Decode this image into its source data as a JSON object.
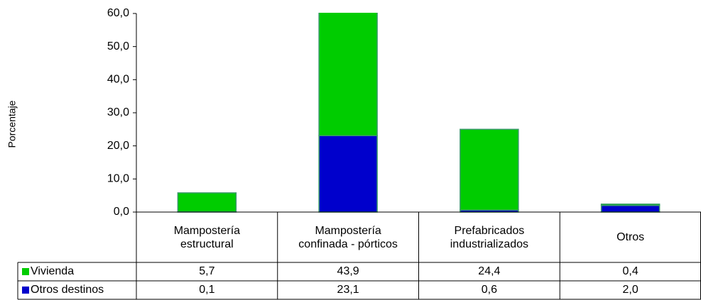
{
  "chart_data": {
    "type": "stacked_bar_table",
    "y_label": "Porcentaje",
    "categories": [
      "Mampostería estructural",
      "Mampostería confinada - pórticos",
      "Prefabricados industrializados",
      "Otros"
    ],
    "series": [
      {
        "name": "Vivienda",
        "color": "#00cc00",
        "values": [
          5.7,
          43.9,
          24.4,
          0.4
        ],
        "value_labels": [
          "5,7",
          "43,9",
          "24,4",
          "0,4"
        ]
      },
      {
        "name": "Otros destinos",
        "color": "#0000cc",
        "values": [
          0.1,
          23.1,
          0.6,
          2.0
        ],
        "value_labels": [
          "0,1",
          "23,1",
          "0,6",
          "2,0"
        ]
      }
    ],
    "ylim": [
      0,
      60
    ],
    "yticks": [
      {
        "value": 0,
        "label": "0,0"
      },
      {
        "value": 10,
        "label": "10,0"
      },
      {
        "value": 20,
        "label": "20,0"
      },
      {
        "value": 30,
        "label": "30,0"
      },
      {
        "value": 40,
        "label": "40,0"
      },
      {
        "value": 50,
        "label": "50,0"
      },
      {
        "value": 60,
        "label": "60,0"
      }
    ]
  }
}
